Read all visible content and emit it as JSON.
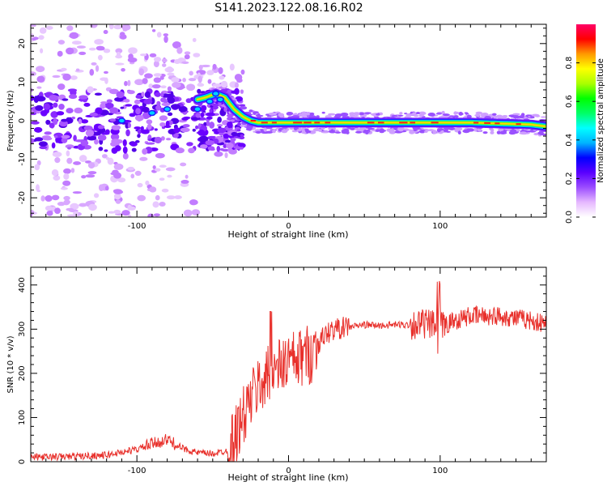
{
  "title": "S141.2023.122.08.16.R02",
  "colors": {
    "snr_line": "#e8302b",
    "ridge": "#ff1a1a",
    "axis": "#000000"
  },
  "chart_data": [
    {
      "type": "heatmap",
      "xlabel": "Height of straight line (km)",
      "ylabel": "Frequency (Hz)",
      "xlim": [
        -170,
        170
      ],
      "ylim": [
        -25,
        25
      ],
      "x_ticks": [
        -100,
        0,
        100
      ],
      "y_ticks": [
        -20,
        -10,
        0,
        10,
        20
      ],
      "colorbar": {
        "label": "Normalized spectral amplitude",
        "range": [
          0,
          1
        ],
        "ticks": [
          0.0,
          0.2,
          0.4,
          0.6,
          0.8
        ],
        "tick_labels": [
          "0.0",
          "0.2",
          "0.4",
          "0.6",
          "0.8"
        ],
        "colormap": [
          "#ffffff",
          "#e6b8ff",
          "#9b4dff",
          "#5a00ff",
          "#0000ff",
          "#00b4ff",
          "#00ffff",
          "#00ff66",
          "#00ff00",
          "#aaff00",
          "#ffff00",
          "#ff9900",
          "#ff0000",
          "#ff0066"
        ]
      },
      "ridge": {
        "x": [
          -65,
          -55,
          -48,
          -42,
          -36,
          -30,
          -25,
          -20,
          -10,
          0,
          10,
          40,
          80,
          120,
          160,
          170
        ],
        "y": [
          5,
          6,
          7,
          6,
          3,
          1,
          0,
          -0.5,
          -0.5,
          -0.5,
          -0.5,
          -0.5,
          -0.5,
          -0.5,
          -1,
          -1.5
        ]
      }
    },
    {
      "type": "line",
      "xlabel": "Height of straight line (km)",
      "ylabel": "SNR (10 * v/v)",
      "xlim": [
        -170,
        170
      ],
      "ylim": [
        0,
        440
      ],
      "x_ticks": [
        -100,
        0,
        100
      ],
      "y_ticks": [
        0,
        100,
        200,
        300,
        400
      ],
      "trend": {
        "x": [
          -170,
          -140,
          -120,
          -100,
          -90,
          -80,
          -70,
          -60,
          -50,
          -40,
          -35,
          -30,
          -25,
          -20,
          -15,
          -10,
          -5,
          0,
          5,
          10,
          15,
          20,
          25,
          30,
          40,
          50,
          60,
          70,
          80,
          90,
          100,
          110,
          120,
          130,
          140,
          150,
          160,
          170
        ],
        "y": [
          10,
          12,
          15,
          28,
          40,
          50,
          30,
          20,
          18,
          25,
          60,
          100,
          140,
          170,
          190,
          200,
          215,
          230,
          225,
          240,
          245,
          270,
          290,
          300,
          305,
          310,
          308,
          310,
          310,
          312,
          305,
          320,
          330,
          330,
          330,
          325,
          320,
          310
        ]
      }
    }
  ]
}
